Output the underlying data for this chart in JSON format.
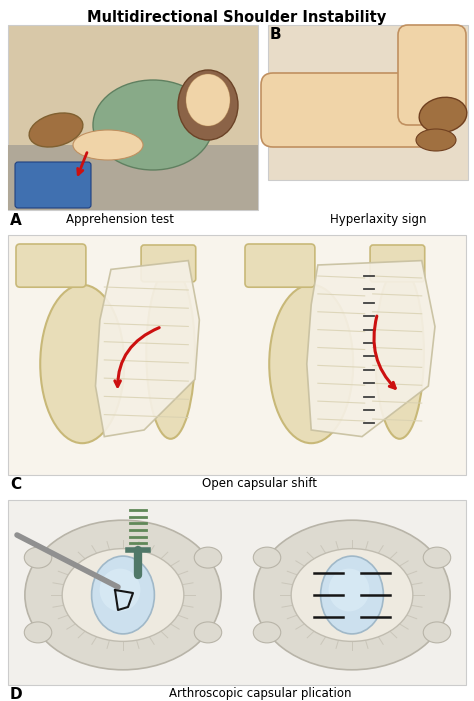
{
  "title": "Multidirectional Shoulder Instability",
  "title_fontsize": 10.5,
  "title_fontweight": "bold",
  "background_color": "#ffffff",
  "captions": {
    "apprehension": "Apprehension test",
    "hyperlaxity": "Hyperlaxity sign",
    "capsular": "Open capsular shift",
    "arthroscopic": "Arthroscopic capsular plication"
  },
  "caption_fontsize": 8.5,
  "label_fontsize": 11,
  "panel_edge_color": "#cccccc",
  "panel_edge_lw": 0.8,
  "bone_color": "#e8ddb8",
  "bone_edge": "#c8b878",
  "capsule_color": "#f0ece0",
  "capsule_edge": "#d0c8a0",
  "striation_color": "#d8d0b0",
  "red_arrow": "#cc1010",
  "dark_arrow": "#303030",
  "skin_light": "#f0d4a8",
  "skin_dark": "#a07040",
  "green_shirt": "#88aa88",
  "blue_pants": "#4070b0",
  "table_color": "#b0a898",
  "bg_A": "#d8c8a8",
  "bg_B": "#e8dcc8",
  "bg_C": "#f0ece0",
  "bg_D": "#e8e4dc",
  "glenoid_blue": "#cce0ee",
  "glenoid_edge": "#a0b8c8",
  "teal_tool": "#507868",
  "grey_probe": "#909090"
}
